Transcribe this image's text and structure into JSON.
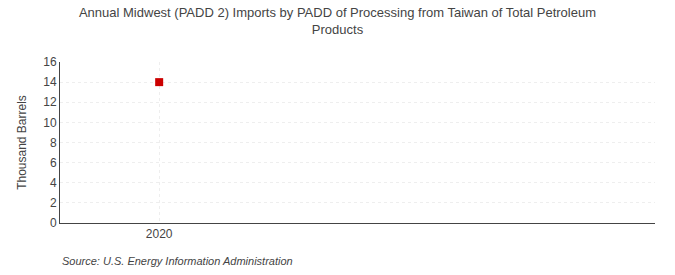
{
  "chart_data": {
    "type": "scatter",
    "title": "Annual Midwest (PADD 2) Imports by PADD of Processing from Taiwan of Total Petroleum\nProducts",
    "y_label": "Thousand Barrels",
    "annotations": [
      "Source: U.S. Energy Information Administration"
    ],
    "x": [
      2020
    ],
    "values": [
      14
    ],
    "color": "#cc0000",
    "marker": "square",
    "xlim": [
      2019.7,
      2021.5
    ],
    "xticks": [
      2020
    ],
    "ylim": [
      0,
      16
    ],
    "yticks": [
      0,
      2,
      4,
      6,
      8,
      10,
      12,
      14,
      16
    ],
    "grid": true
  }
}
